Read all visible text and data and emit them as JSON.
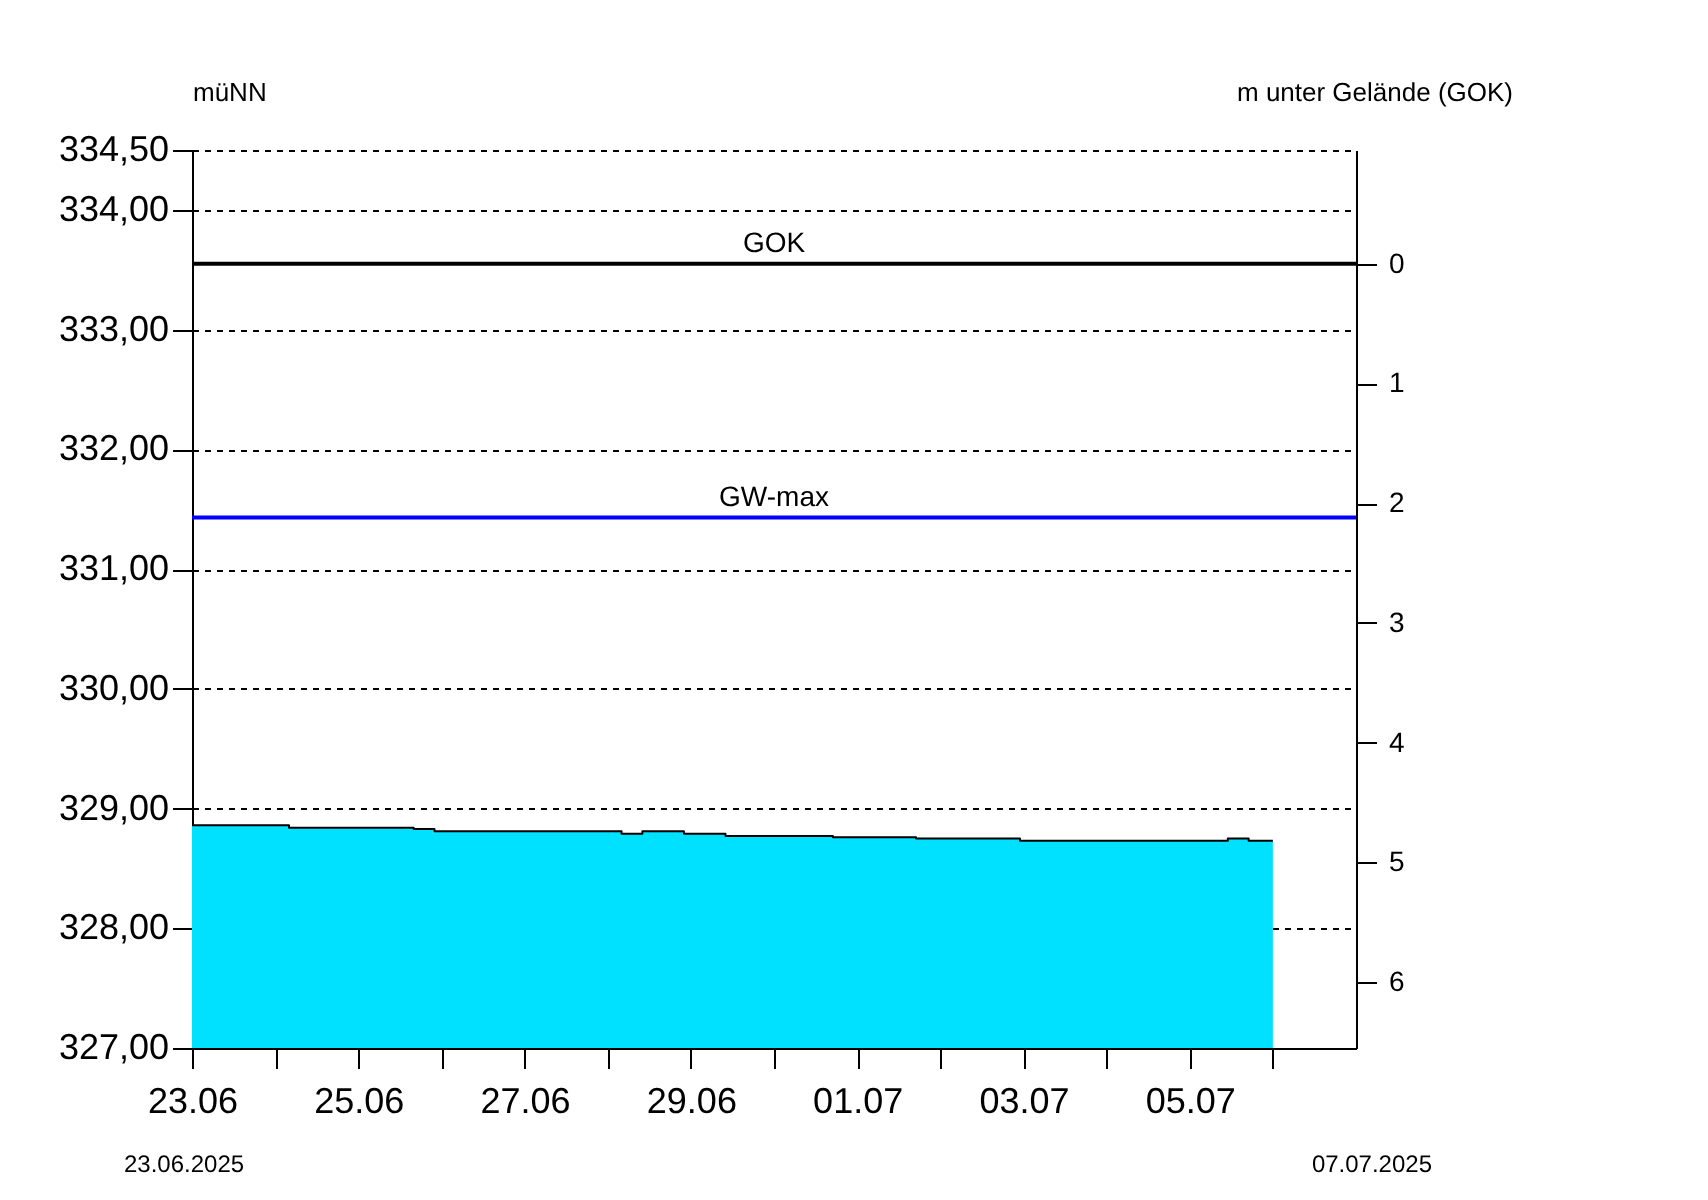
{
  "chart_data": {
    "type": "area",
    "ylabel": "müNN",
    "y2label": "m unter Gelände (GOK)",
    "x": [
      "2025-06-23T00:00",
      "2025-06-24T04:00",
      "2025-06-25T16:00",
      "2025-06-25T22:00",
      "2025-06-28T04:00",
      "2025-06-28T10:00",
      "2025-06-28T22:00",
      "2025-06-29T10:00",
      "2025-06-30T17:00",
      "2025-07-01T17:00",
      "2025-07-02T23:00",
      "2025-07-05T11:00",
      "2025-07-05T17:00",
      "2025-07-06T00:00"
    ],
    "series": [
      {
        "color": "#00e1ff",
        "values": [
          328.86,
          328.84,
          328.83,
          328.81,
          328.79,
          328.81,
          328.79,
          328.77,
          328.76,
          328.75,
          328.73,
          328.75,
          328.73,
          328.73
        ]
      }
    ],
    "xlim": [
      "2025-06-23",
      "2025-07-07"
    ],
    "xticks": [
      {
        "value": "2025-06-23",
        "label": "23.06"
      },
      {
        "value": "2025-06-24",
        "label": null
      },
      {
        "value": "2025-06-25",
        "label": "25.06"
      },
      {
        "value": "2025-06-26",
        "label": null
      },
      {
        "value": "2025-06-27",
        "label": "27.06"
      },
      {
        "value": "2025-06-28",
        "label": null
      },
      {
        "value": "2025-06-29",
        "label": "29.06"
      },
      {
        "value": "2025-06-30",
        "label": null
      },
      {
        "value": "2025-07-01",
        "label": "01.07"
      },
      {
        "value": "2025-07-02",
        "label": null
      },
      {
        "value": "2025-07-03",
        "label": "03.07"
      },
      {
        "value": "2025-07-04",
        "label": null
      },
      {
        "value": "2025-07-05",
        "label": "05.07"
      },
      {
        "value": "2025-07-06",
        "label": null
      }
    ],
    "ylim": [
      327,
      334.5
    ],
    "yticks": [
      {
        "value": 327,
        "label": "327,00"
      },
      {
        "value": 328,
        "label": "328,00"
      },
      {
        "value": 329,
        "label": "329,00"
      },
      {
        "value": 330,
        "label": "330,00"
      },
      {
        "value": 331,
        "label": "331,00"
      },
      {
        "value": 332,
        "label": "332,00"
      },
      {
        "value": 333,
        "label": "333,00"
      },
      {
        "value": 334,
        "label": "334,00"
      },
      {
        "value": 334.5,
        "label": "334,50"
      }
    ],
    "y2lim": [
      6.55,
      -0.95
    ],
    "y2ticks": [
      0,
      1,
      2,
      3,
      4,
      5,
      6
    ],
    "ref_lines": [
      {
        "axis": "y2",
        "value": 0,
        "label": "GOK",
        "color": "#000000"
      },
      {
        "axis": "y",
        "value": 331.43,
        "label": "GW-max",
        "color": "#0000ff"
      }
    ],
    "annotations": [
      "23.06.2025",
      "07.07.2025"
    ],
    "grid": "y",
    "line_style": "solid"
  }
}
